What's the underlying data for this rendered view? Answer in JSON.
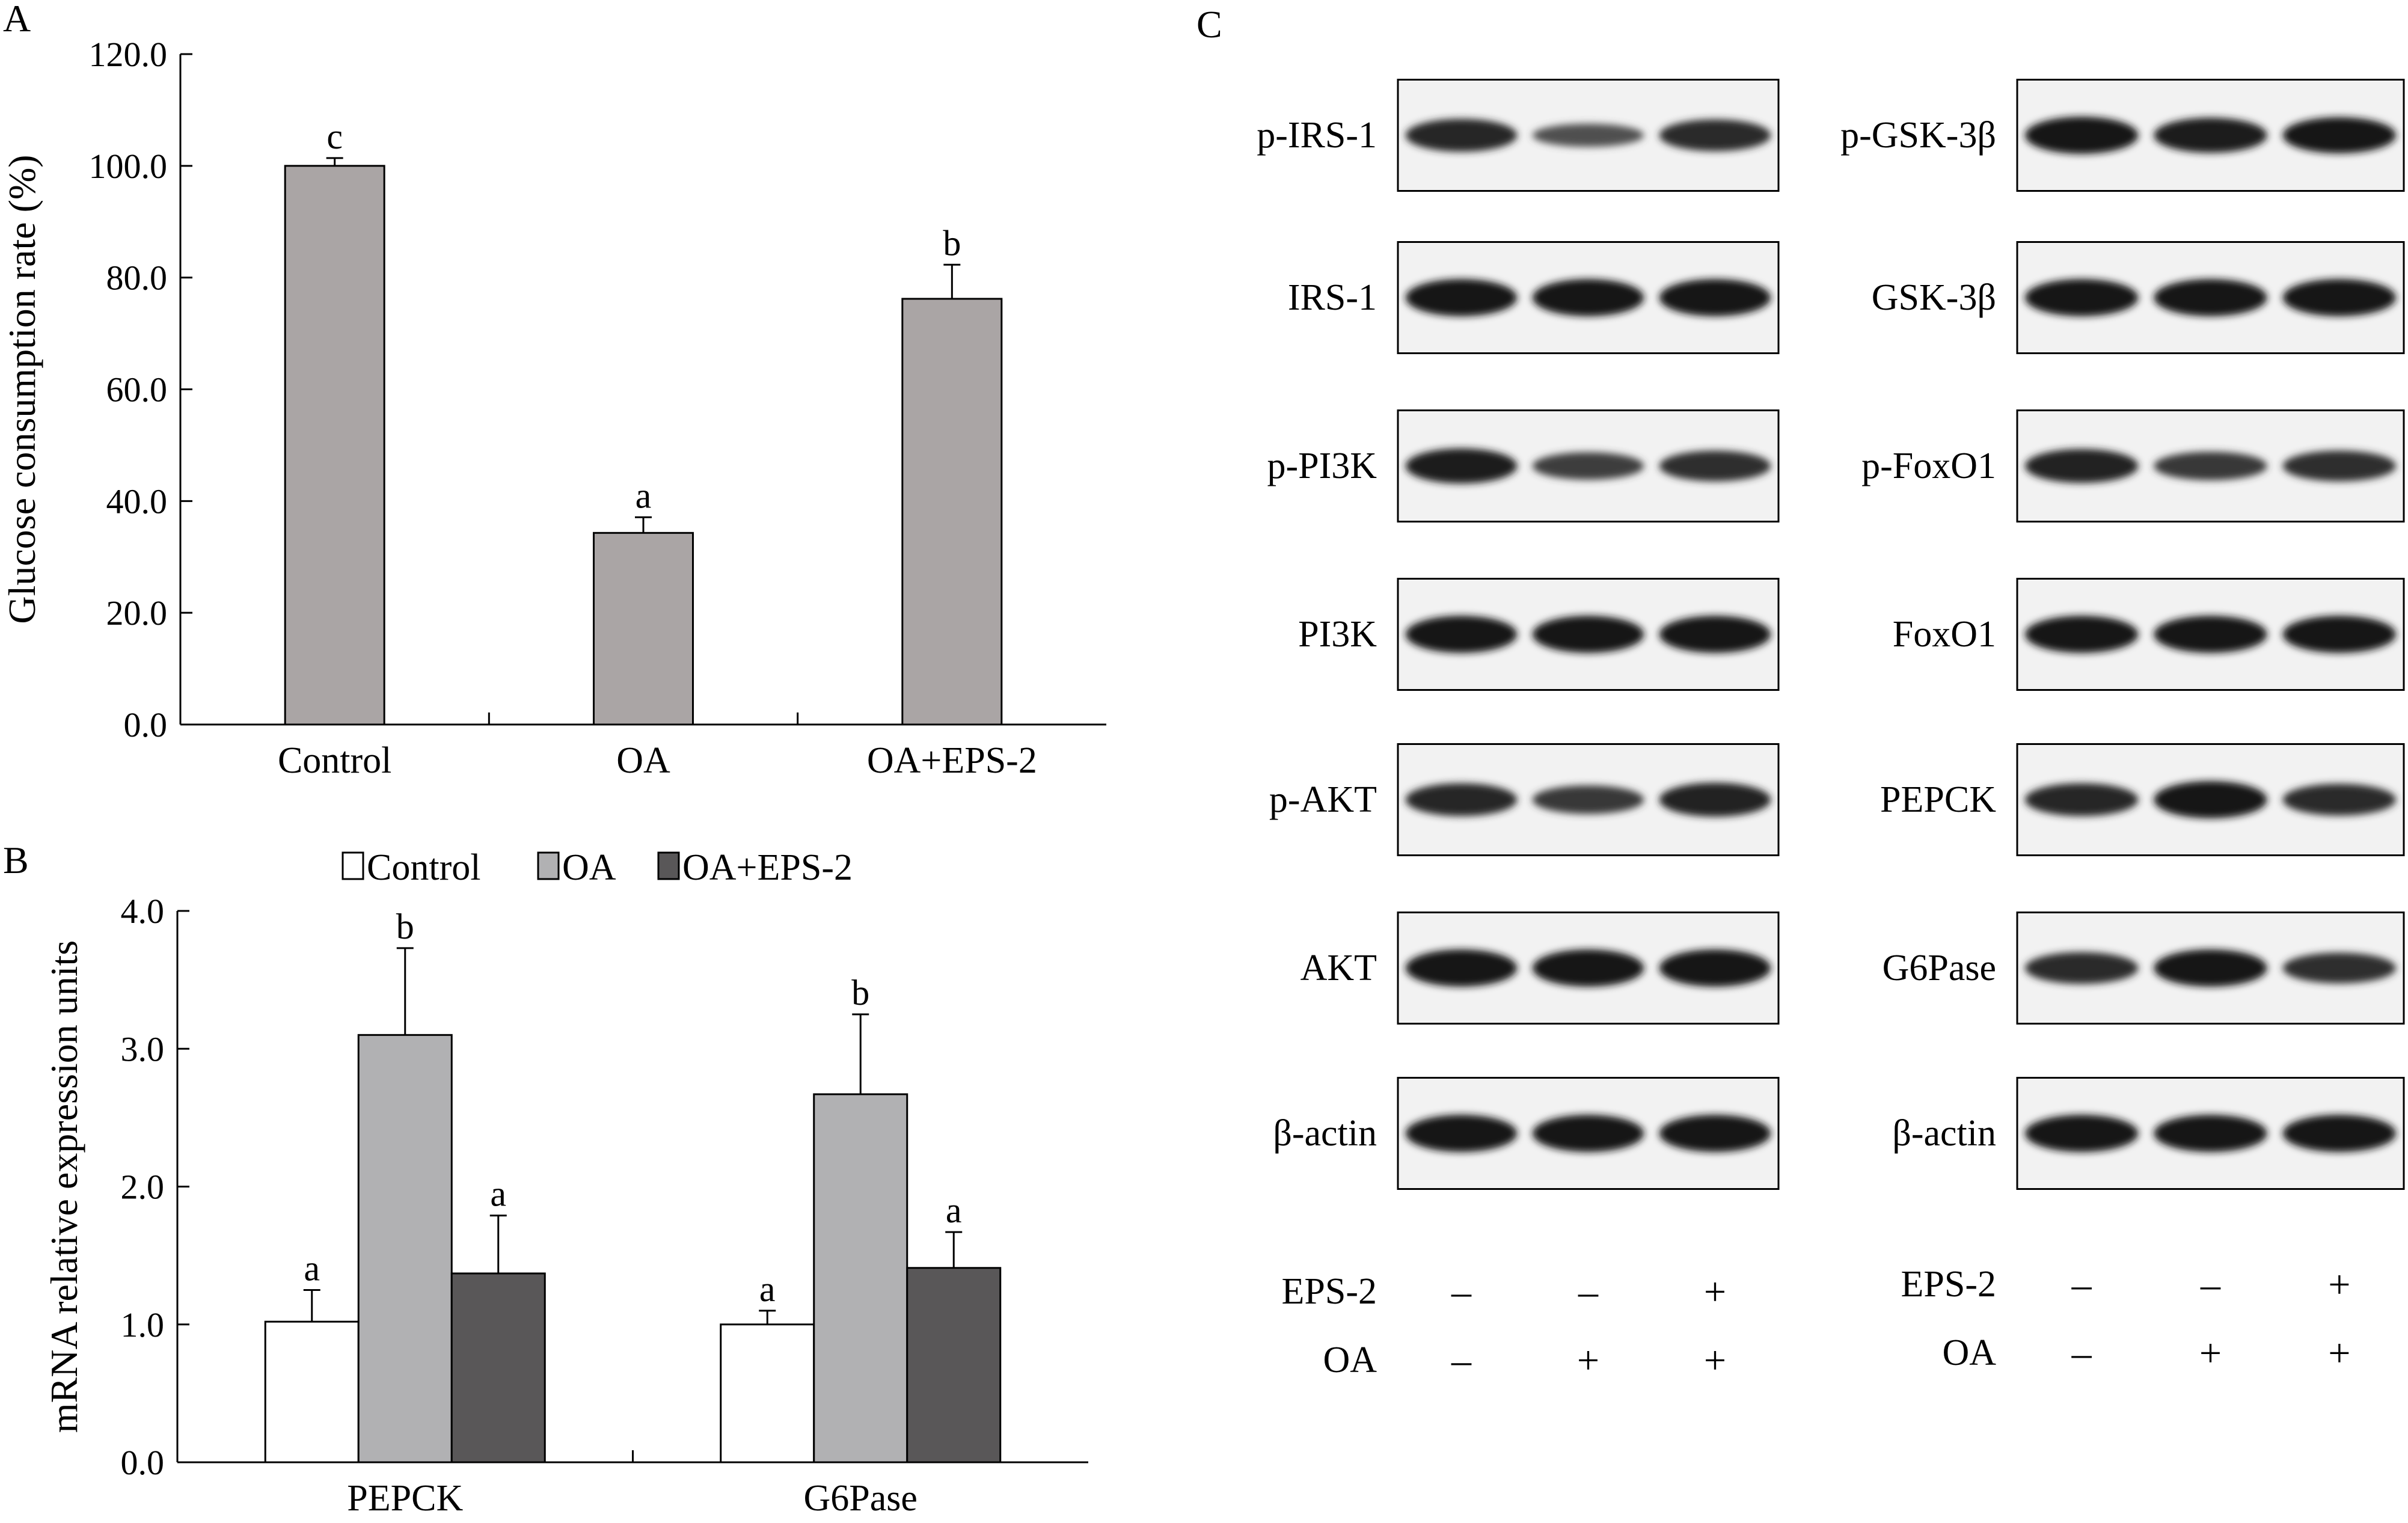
{
  "chart_data": [
    {
      "panel": "A",
      "type": "bar",
      "ylabel": "Glucose consumption rate (%)",
      "ylim": [
        0,
        120
      ],
      "yticks": [
        "0.0",
        "20.0",
        "40.0",
        "60.0",
        "80.0",
        "100.0",
        "120.0"
      ],
      "categories": [
        "Control",
        "OA",
        "OA+EPS-2"
      ],
      "values": [
        100.0,
        34.3,
        76.2
      ],
      "errors": [
        1.4,
        2.8,
        6.1
      ],
      "sig_letters": [
        "c",
        "a",
        "b"
      ],
      "bar_color": "#aaa5a5",
      "grid": false
    },
    {
      "panel": "B",
      "type": "bar",
      "ylabel": "mRNA relative expression units",
      "ylim": [
        0,
        4
      ],
      "yticks": [
        "0.0",
        "1.0",
        "2.0",
        "3.0",
        "4.0"
      ],
      "categories": [
        "PEPCK",
        "G6Pase"
      ],
      "legend_position": "top",
      "series": [
        {
          "name": "Control",
          "color": "#ffffff",
          "values": [
            1.02,
            1.0
          ],
          "errors": [
            0.23,
            0.1
          ],
          "sig_letters": [
            "a",
            "a"
          ]
        },
        {
          "name": "OA",
          "color": "#b1b1b3",
          "values": [
            3.1,
            2.67
          ],
          "errors": [
            0.63,
            0.58
          ],
          "sig_letters": [
            "b",
            "b"
          ]
        },
        {
          "name": "OA+EPS-2",
          "color": "#595758",
          "values": [
            1.37,
            1.41
          ],
          "errors": [
            0.42,
            0.26
          ],
          "sig_letters": [
            "a",
            "a"
          ]
        }
      ],
      "grid": false
    },
    {
      "panel": "C",
      "type": "western_blot",
      "lanes": 3,
      "left_column": {
        "proteins": [
          "p-IRS-1",
          "IRS-1",
          "p-PI3K",
          "PI3K",
          "p-AKT",
          "AKT",
          "β-actin"
        ],
        "band_intensity": [
          [
            0.8,
            0.35,
            0.75
          ],
          [
            1.0,
            1.0,
            1.0
          ],
          [
            0.9,
            0.55,
            0.7
          ],
          [
            1.0,
            1.0,
            1.0
          ],
          [
            0.8,
            0.6,
            0.85
          ],
          [
            1.0,
            1.0,
            1.0
          ],
          [
            1.0,
            1.0,
            1.0
          ]
        ]
      },
      "right_column": {
        "proteins": [
          "p-GSK-3β",
          "GSK-3β",
          "p-FoxO1",
          "FoxO1",
          "PEPCK",
          "G6Pase",
          "β-actin"
        ],
        "band_intensity": [
          [
            1.0,
            0.9,
            0.95
          ],
          [
            1.0,
            1.0,
            1.0
          ],
          [
            0.85,
            0.6,
            0.7
          ],
          [
            1.0,
            1.0,
            1.0
          ],
          [
            0.8,
            1.0,
            0.75
          ],
          [
            0.75,
            1.0,
            0.7
          ],
          [
            1.0,
            1.0,
            1.0
          ]
        ]
      },
      "treatments": [
        {
          "label": "EPS-2",
          "signs": [
            "–",
            "–",
            "+"
          ]
        },
        {
          "label": "OA",
          "signs": [
            "–",
            "+",
            "+"
          ]
        }
      ]
    }
  ],
  "panel_labels": [
    "A",
    "B",
    "C"
  ]
}
